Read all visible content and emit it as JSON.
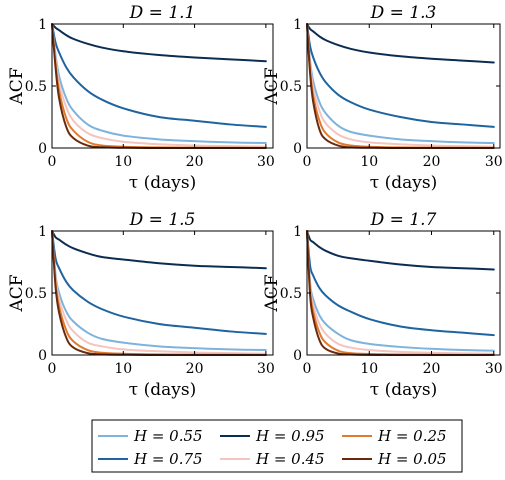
{
  "chart_data": [
    {
      "type": "line",
      "title": "D = 1.1",
      "xlabel": "τ (days)",
      "ylabel": "ACF",
      "xlim": [
        0,
        31
      ],
      "ylim": [
        0,
        1
      ],
      "xticks": [
        "0",
        "10",
        "20",
        "30"
      ],
      "yticks": [
        "0",
        "0.5",
        "1"
      ],
      "grid": false,
      "series": [
        {
          "name": "H = 0.95",
          "x": [
            0,
            0.5,
            1,
            2,
            3,
            5,
            7,
            10,
            15,
            20,
            25,
            30
          ],
          "values": [
            1,
            0.97,
            0.95,
            0.91,
            0.88,
            0.84,
            0.81,
            0.78,
            0.75,
            0.73,
            0.715,
            0.7
          ]
        },
        {
          "name": "H = 0.75",
          "x": [
            0,
            0.5,
            1,
            2,
            3,
            5,
            7,
            10,
            15,
            20,
            25,
            30
          ],
          "values": [
            1,
            0.85,
            0.77,
            0.65,
            0.57,
            0.46,
            0.39,
            0.32,
            0.25,
            0.22,
            0.19,
            0.17
          ]
        },
        {
          "name": "H = 0.55",
          "x": [
            0,
            0.5,
            1,
            2,
            3,
            5,
            7,
            10,
            15,
            20,
            25,
            30
          ],
          "values": [
            1,
            0.75,
            0.58,
            0.4,
            0.3,
            0.19,
            0.14,
            0.1,
            0.07,
            0.055,
            0.045,
            0.04
          ]
        },
        {
          "name": "H = 0.45",
          "x": [
            0,
            0.5,
            1,
            2,
            3,
            5,
            7,
            10,
            15,
            20,
            25,
            30
          ],
          "values": [
            1,
            0.72,
            0.52,
            0.33,
            0.22,
            0.12,
            0.08,
            0.05,
            0.03,
            0.02,
            0.015,
            0.01
          ]
        },
        {
          "name": "H = 0.25",
          "x": [
            0,
            0.5,
            1,
            2,
            3,
            5,
            7,
            10,
            15,
            20,
            25,
            30
          ],
          "values": [
            1,
            0.68,
            0.46,
            0.24,
            0.14,
            0.05,
            0.02,
            0.01,
            0.005,
            0.003,
            0.002,
            0.001
          ]
        },
        {
          "name": "H = 0.05",
          "x": [
            0,
            0.5,
            1,
            2,
            3,
            5,
            7,
            10,
            15,
            20,
            25,
            30
          ],
          "values": [
            1,
            0.65,
            0.4,
            0.17,
            0.08,
            0.02,
            0.006,
            0.002,
            0,
            0,
            0,
            0
          ]
        }
      ]
    },
    {
      "type": "line",
      "title": "D = 1.3",
      "xlabel": "τ (days)",
      "ylabel": "ACF",
      "xlim": [
        0,
        31
      ],
      "ylim": [
        0,
        1
      ],
      "xticks": [
        "0",
        "10",
        "20",
        "30"
      ],
      "yticks": [
        "0",
        "0.5",
        "1"
      ],
      "grid": false,
      "series": [
        {
          "name": "H = 0.95",
          "x": [
            0,
            0.5,
            1,
            2,
            3,
            5,
            7,
            10,
            15,
            20,
            25,
            30
          ],
          "values": [
            1,
            0.96,
            0.94,
            0.9,
            0.87,
            0.83,
            0.8,
            0.77,
            0.74,
            0.72,
            0.705,
            0.69
          ]
        },
        {
          "name": "H = 0.75",
          "x": [
            0,
            0.5,
            1,
            2,
            3,
            5,
            7,
            10,
            15,
            20,
            25,
            30
          ],
          "values": [
            1,
            0.82,
            0.73,
            0.61,
            0.53,
            0.43,
            0.37,
            0.31,
            0.25,
            0.21,
            0.19,
            0.17
          ]
        },
        {
          "name": "H = 0.55",
          "x": [
            0,
            0.5,
            1,
            2,
            3,
            5,
            7,
            10,
            15,
            20,
            25,
            30
          ],
          "values": [
            1,
            0.7,
            0.54,
            0.37,
            0.28,
            0.18,
            0.13,
            0.1,
            0.07,
            0.055,
            0.045,
            0.04
          ]
        },
        {
          "name": "H = 0.45",
          "x": [
            0,
            0.5,
            1,
            2,
            3,
            5,
            7,
            10,
            15,
            20,
            25,
            30
          ],
          "values": [
            1,
            0.67,
            0.48,
            0.3,
            0.2,
            0.11,
            0.07,
            0.045,
            0.03,
            0.02,
            0.015,
            0.01
          ]
        },
        {
          "name": "H = 0.25",
          "x": [
            0,
            0.5,
            1,
            2,
            3,
            5,
            7,
            10,
            15,
            20,
            25,
            30
          ],
          "values": [
            1,
            0.63,
            0.42,
            0.22,
            0.12,
            0.045,
            0.02,
            0.01,
            0.005,
            0.003,
            0.002,
            0.001
          ]
        },
        {
          "name": "H = 0.05",
          "x": [
            0,
            0.5,
            1,
            2,
            3,
            5,
            7,
            10,
            15,
            20,
            25,
            30
          ],
          "values": [
            1,
            0.6,
            0.37,
            0.15,
            0.07,
            0.02,
            0.005,
            0.002,
            0,
            0,
            0,
            0
          ]
        }
      ]
    },
    {
      "type": "line",
      "title": "D = 1.5",
      "xlabel": "τ (days)",
      "ylabel": "ACF",
      "xlim": [
        0,
        31
      ],
      "ylim": [
        0,
        1
      ],
      "xticks": [
        "0",
        "10",
        "20",
        "30"
      ],
      "yticks": [
        "0",
        "0.5",
        "1"
      ],
      "grid": false,
      "series": [
        {
          "name": "H = 0.95",
          "x": [
            0,
            0.5,
            1,
            2,
            3,
            5,
            7,
            10,
            15,
            20,
            25,
            30
          ],
          "values": [
            1,
            0.95,
            0.93,
            0.89,
            0.86,
            0.82,
            0.79,
            0.77,
            0.74,
            0.72,
            0.71,
            0.7
          ]
        },
        {
          "name": "H = 0.75",
          "x": [
            0,
            0.5,
            1,
            2,
            3,
            5,
            7,
            10,
            15,
            20,
            25,
            30
          ],
          "values": [
            1,
            0.78,
            0.7,
            0.59,
            0.52,
            0.43,
            0.37,
            0.31,
            0.25,
            0.22,
            0.19,
            0.17
          ]
        },
        {
          "name": "H = 0.55",
          "x": [
            0,
            0.5,
            1,
            2,
            3,
            5,
            7,
            10,
            15,
            20,
            25,
            30
          ],
          "values": [
            1,
            0.65,
            0.5,
            0.35,
            0.27,
            0.18,
            0.13,
            0.1,
            0.07,
            0.055,
            0.045,
            0.04
          ]
        },
        {
          "name": "H = 0.45",
          "x": [
            0,
            0.5,
            1,
            2,
            3,
            5,
            7,
            10,
            15,
            20,
            25,
            30
          ],
          "values": [
            1,
            0.62,
            0.45,
            0.28,
            0.19,
            0.1,
            0.07,
            0.045,
            0.03,
            0.02,
            0.015,
            0.01
          ]
        },
        {
          "name": "H = 0.25",
          "x": [
            0,
            0.5,
            1,
            2,
            3,
            5,
            7,
            10,
            15,
            20,
            25,
            30
          ],
          "values": [
            1,
            0.58,
            0.39,
            0.2,
            0.11,
            0.04,
            0.018,
            0.01,
            0.005,
            0.003,
            0.002,
            0.001
          ]
        },
        {
          "name": "H = 0.05",
          "x": [
            0,
            0.5,
            1,
            2,
            3,
            5,
            7,
            10,
            15,
            20,
            25,
            30
          ],
          "values": [
            1,
            0.55,
            0.34,
            0.14,
            0.06,
            0.015,
            0.005,
            0.002,
            0,
            0,
            0,
            0
          ]
        }
      ]
    },
    {
      "type": "line",
      "title": "D = 1.7",
      "xlabel": "τ (days)",
      "ylabel": "ACF",
      "xlim": [
        0,
        31
      ],
      "ylim": [
        0,
        1
      ],
      "xticks": [
        "0",
        "10",
        "20",
        "30"
      ],
      "yticks": [
        "0",
        "0.5",
        "1"
      ],
      "grid": false,
      "series": [
        {
          "name": "H = 0.95",
          "x": [
            0,
            0.5,
            1,
            2,
            3,
            5,
            7,
            10,
            15,
            20,
            25,
            30
          ],
          "values": [
            1,
            0.93,
            0.91,
            0.87,
            0.84,
            0.8,
            0.78,
            0.76,
            0.73,
            0.71,
            0.7,
            0.69
          ]
        },
        {
          "name": "H = 0.75",
          "x": [
            0,
            0.5,
            1,
            2,
            3,
            5,
            7,
            10,
            15,
            20,
            25,
            30
          ],
          "values": [
            1,
            0.72,
            0.64,
            0.54,
            0.48,
            0.4,
            0.35,
            0.29,
            0.23,
            0.2,
            0.18,
            0.16
          ]
        },
        {
          "name": "H = 0.55",
          "x": [
            0,
            0.5,
            1,
            2,
            3,
            5,
            7,
            10,
            15,
            20,
            25,
            30
          ],
          "values": [
            1,
            0.58,
            0.45,
            0.32,
            0.25,
            0.17,
            0.12,
            0.09,
            0.065,
            0.05,
            0.04,
            0.035
          ]
        },
        {
          "name": "H = 0.45",
          "x": [
            0,
            0.5,
            1,
            2,
            3,
            5,
            7,
            10,
            15,
            20,
            25,
            30
          ],
          "values": [
            1,
            0.55,
            0.4,
            0.25,
            0.17,
            0.09,
            0.06,
            0.04,
            0.025,
            0.018,
            0.013,
            0.01
          ]
        },
        {
          "name": "H = 0.25",
          "x": [
            0,
            0.5,
            1,
            2,
            3,
            5,
            7,
            10,
            15,
            20,
            25,
            30
          ],
          "values": [
            1,
            0.52,
            0.35,
            0.18,
            0.1,
            0.035,
            0.015,
            0.008,
            0.004,
            0.002,
            0.001,
            0.001
          ]
        },
        {
          "name": "H = 0.05",
          "x": [
            0,
            0.5,
            1,
            2,
            3,
            5,
            7,
            10,
            15,
            20,
            25,
            30
          ],
          "values": [
            1,
            0.48,
            0.3,
            0.12,
            0.05,
            0.012,
            0.004,
            0.001,
            0,
            0,
            0,
            0
          ]
        }
      ]
    }
  ],
  "legend": {
    "placement": "bottom",
    "entries": [
      {
        "label": "H = 0.55",
        "color": "#7db3dc"
      },
      {
        "label": "H = 0.95",
        "color": "#0c2d52"
      },
      {
        "label": "H = 0.25",
        "color": "#e07a2e"
      },
      {
        "label": "H = 0.75",
        "color": "#1f64a0"
      },
      {
        "label": "H = 0.45",
        "color": "#f3c4c0"
      },
      {
        "label": "H = 0.05",
        "color": "#6b2a0c"
      }
    ]
  },
  "colors": {
    "H = 0.95": "#0c2d52",
    "H = 0.75": "#1f64a0",
    "H = 0.55": "#7db3dc",
    "H = 0.45": "#f3c4c0",
    "H = 0.25": "#e07a2e",
    "H = 0.05": "#6b2a0c"
  }
}
